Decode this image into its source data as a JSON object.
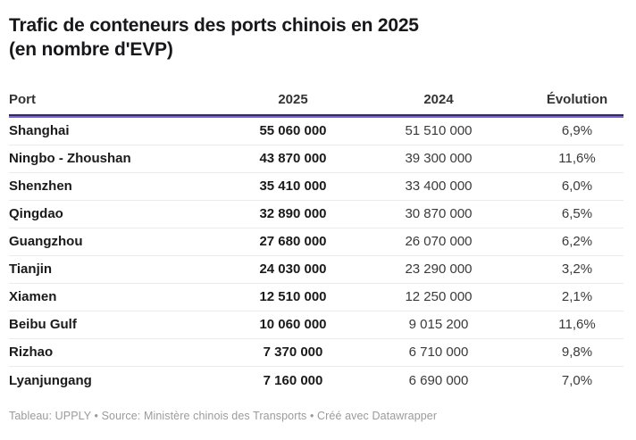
{
  "header": {
    "title_line1": "Trafic de conteneurs des ports chinois en 2025",
    "title_line2": "(en nombre d'EVP)"
  },
  "table": {
    "columns": [
      {
        "label": "Port"
      },
      {
        "label": "2025"
      },
      {
        "label": "2024"
      },
      {
        "label": "Évolution"
      }
    ],
    "rows": [
      {
        "port": "Shanghai",
        "y2025": "55 060 000",
        "y2024": "51 510 000",
        "evolution": "6,9%"
      },
      {
        "port": "Ningbo - Zhoushan",
        "y2025": "43 870 000",
        "y2024": "39 300 000",
        "evolution": "11,6%"
      },
      {
        "port": "Shenzhen",
        "y2025": "35 410 000",
        "y2024": "33 400 000",
        "evolution": "6,0%"
      },
      {
        "port": "Qingdao",
        "y2025": "32 890 000",
        "y2024": "30 870 000",
        "evolution": "6,5%"
      },
      {
        "port": "Guangzhou",
        "y2025": "27 680 000",
        "y2024": "26 070 000",
        "evolution": "6,2%"
      },
      {
        "port": "Tianjin",
        "y2025": "24 030 000",
        "y2024": "23 290 000",
        "evolution": "3,2%"
      },
      {
        "port": "Xiamen",
        "y2025": "12 510 000",
        "y2024": "12 250 000",
        "evolution": "2,1%"
      },
      {
        "port": "Beibu Gulf",
        "y2025": "10 060 000",
        "y2024": "9 015 200",
        "evolution": "11,6%"
      },
      {
        "port": "Rizhao",
        "y2025": "7 370 000",
        "y2024": "6 710 000",
        "evolution": "9,8%"
      },
      {
        "port": "Lyanjungang",
        "y2025": "7 160 000",
        "y2024": "6 690 000",
        "evolution": "7,0%"
      }
    ]
  },
  "footer": {
    "text": "Tableau: UPPLY • Source: Ministère chinois des Transports • Créé avec Datawrapper"
  },
  "colors": {
    "accent_dark": "#332b58",
    "accent_purple": "#7b68be",
    "row_divider": "#ebebeb",
    "text_primary": "#1a1a1a",
    "text_secondary": "#3a3a3a",
    "footer_text": "#9b9b9b"
  },
  "chart_data": {
    "type": "table",
    "title": "Trafic de conteneurs des ports chinois en 2025 (en nombre d'EVP)",
    "columns": [
      "Port",
      "2025",
      "2024",
      "Évolution"
    ],
    "rows": [
      [
        "Shanghai",
        55060000,
        51510000,
        "6,9%"
      ],
      [
        "Ningbo - Zhoushan",
        43870000,
        39300000,
        "11,6%"
      ],
      [
        "Shenzhen",
        35410000,
        33400000,
        "6,0%"
      ],
      [
        "Qingdao",
        32890000,
        30870000,
        "6,5%"
      ],
      [
        "Guangzhou",
        27680000,
        26070000,
        "6,2%"
      ],
      [
        "Tianjin",
        24030000,
        23290000,
        "3,2%"
      ],
      [
        "Xiamen",
        12510000,
        12250000,
        "2,1%"
      ],
      [
        "Beibu Gulf",
        10060000,
        9015200,
        "11,6%"
      ],
      [
        "Rizhao",
        7370000,
        6710000,
        "9,8%"
      ],
      [
        "Lyanjungang",
        7160000,
        6690000,
        "7,0%"
      ]
    ],
    "notes": "Créé avec Datawrapper; Tableau: UPPLY; Source: Ministère chinois des Transports"
  }
}
